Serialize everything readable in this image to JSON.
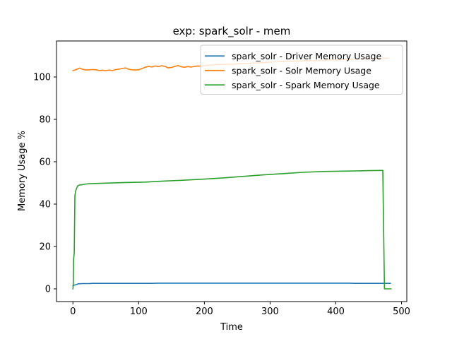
{
  "chart_data": {
    "type": "line",
    "title": "exp: spark_solr - mem",
    "xlabel": "Time",
    "ylabel": "Memory Usage %",
    "xlim": [
      -25,
      508
    ],
    "ylim": [
      -6,
      117
    ],
    "xticks": [
      0,
      100,
      200,
      300,
      400,
      500
    ],
    "yticks": [
      0,
      20,
      40,
      60,
      80,
      100
    ],
    "grid": false,
    "legend_position": "top-right",
    "series": [
      {
        "name": "spark_solr - Driver Memory Usage",
        "color": "#1f77b4",
        "x": [
          0,
          2,
          5,
          8,
          15,
          25,
          30,
          50,
          100,
          120,
          130,
          150,
          200,
          300,
          400,
          420,
          430,
          480,
          483
        ],
        "y": [
          1.5,
          1.8,
          2.0,
          2.4,
          2.5,
          2.5,
          2.6,
          2.6,
          2.6,
          2.6,
          2.7,
          2.7,
          2.7,
          2.7,
          2.7,
          2.7,
          2.6,
          2.6,
          2.6
        ]
      },
      {
        "name": "spark_solr - Solr Memory Usage",
        "color": "#ff7f0e",
        "x": [
          0,
          5,
          10,
          15,
          20,
          25,
          30,
          35,
          40,
          45,
          50,
          55,
          60,
          65,
          70,
          75,
          80,
          85,
          90,
          95,
          100,
          105,
          110,
          115,
          120,
          125,
          130,
          135,
          140,
          145,
          150,
          155,
          160,
          165,
          170,
          175,
          180,
          185,
          190,
          195,
          200,
          210,
          220,
          230,
          240,
          250,
          260,
          270,
          280,
          290,
          300,
          320,
          340,
          360,
          380,
          400,
          420,
          440,
          460,
          480
        ],
        "y": [
          103.0,
          103.5,
          104.2,
          103.6,
          103.3,
          103.4,
          103.5,
          103.4,
          103.0,
          103.2,
          103.0,
          103.3,
          103.0,
          103.5,
          103.7,
          104.0,
          104.3,
          103.6,
          103.4,
          103.3,
          103.4,
          104.0,
          104.6,
          105.0,
          104.7,
          105.2,
          104.9,
          105.3,
          105.0,
          104.3,
          104.5,
          105.0,
          105.4,
          104.8,
          104.6,
          104.9,
          104.7,
          105.0,
          105.2,
          105.1,
          105.3,
          105.6,
          105.8,
          105.9,
          106.0,
          106.2,
          106.4,
          106.5,
          106.6,
          106.8,
          107.0,
          107.3,
          107.5,
          107.7,
          107.9,
          108.1,
          108.3,
          108.5,
          108.7,
          108.9
        ]
      },
      {
        "name": "spark_solr - Spark Memory Usage",
        "color": "#2ca02c",
        "x": [
          0,
          0.5,
          1,
          2,
          3,
          4,
          5,
          7,
          10,
          15,
          20,
          30,
          50,
          80,
          110,
          140,
          170,
          200,
          230,
          260,
          290,
          320,
          350,
          380,
          420,
          450,
          470,
          471.5,
          474,
          484
        ],
        "y": [
          0,
          1.5,
          14,
          17,
          44,
          46,
          47,
          48.5,
          49,
          49.2,
          49.5,
          49.7,
          49.9,
          50.2,
          50.4,
          50.9,
          51.3,
          51.8,
          52.4,
          53.1,
          53.8,
          54.4,
          55.0,
          55.4,
          55.6,
          55.8,
          55.9,
          55.9,
          0,
          0
        ]
      }
    ]
  }
}
